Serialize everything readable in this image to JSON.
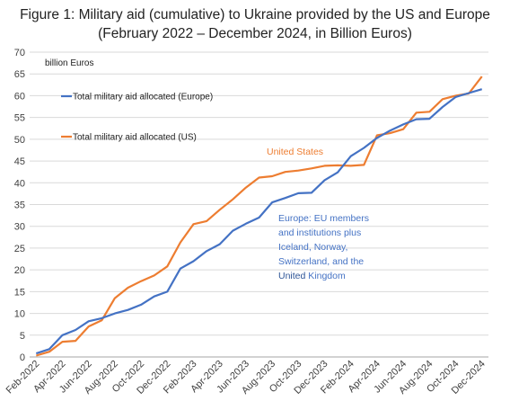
{
  "chart_data": {
    "type": "line",
    "title": "Figure 1: Military aid (cumulative) to Ukraine provided by the US and Europe",
    "subtitle": "(February 2022 – December 2024, in Billion Euros)",
    "ylabel": "billion Euros",
    "xlabel": "",
    "ylim": [
      0,
      70
    ],
    "y_ticks": [
      0,
      5,
      10,
      15,
      20,
      25,
      30,
      35,
      40,
      45,
      50,
      55,
      60,
      65,
      70
    ],
    "grid": "horizontal",
    "x_tick_labels": [
      "Feb-2022",
      "Apr-2022",
      "Jun-2022",
      "Aug-2022",
      "Oct-2022",
      "Dec-2022",
      "Feb-2023",
      "Apr-2023",
      "Jun-2023",
      "Aug-2023",
      "Oct-2023",
      "Dec-2023",
      "Feb-2024",
      "Apr-2024",
      "Jun-2024",
      "Aug-2024",
      "Oct-2024",
      "Dec-2024"
    ],
    "x": [
      "Feb-2022",
      "Mar-2022",
      "Apr-2022",
      "May-2022",
      "Jun-2022",
      "Jul-2022",
      "Aug-2022",
      "Sep-2022",
      "Oct-2022",
      "Nov-2022",
      "Dec-2022",
      "Jan-2023",
      "Feb-2023",
      "Mar-2023",
      "Apr-2023",
      "May-2023",
      "Jun-2023",
      "Jul-2023",
      "Aug-2023",
      "Sep-2023",
      "Oct-2023",
      "Nov-2023",
      "Dec-2023",
      "Jan-2024",
      "Feb-2024",
      "Mar-2024",
      "Apr-2024",
      "May-2024",
      "Jun-2024",
      "Jul-2024",
      "Aug-2024",
      "Sep-2024",
      "Oct-2024",
      "Nov-2024",
      "Dec-2024"
    ],
    "legend_position": "top-left",
    "series": [
      {
        "name": "Total military aid allocated (Europe)",
        "color": "#4472C4",
        "values": [
          0.8,
          1.8,
          5.0,
          6.2,
          8.2,
          8.9,
          10.0,
          10.8,
          12.0,
          13.9,
          15.0,
          20.3,
          22.0,
          24.3,
          25.9,
          29.0,
          30.6,
          32.0,
          35.5,
          36.5,
          37.6,
          37.7,
          40.6,
          42.4,
          46.1,
          48.0,
          50.3,
          52.0,
          53.4,
          54.6,
          54.7,
          57.4,
          59.7,
          60.6,
          61.5
        ]
      },
      {
        "name": "Total military aid allocated (US)",
        "color": "#ED7D31",
        "values": [
          0.3,
          1.2,
          3.5,
          3.7,
          7.0,
          8.4,
          13.5,
          15.9,
          17.4,
          18.7,
          20.8,
          26.3,
          30.5,
          31.2,
          33.8,
          36.2,
          38.9,
          41.2,
          41.5,
          42.5,
          42.8,
          43.3,
          43.9,
          44.0,
          43.9,
          44.1,
          50.9,
          51.4,
          52.3,
          56.1,
          56.3,
          59.2,
          60.0,
          60.5,
          64.4
        ]
      }
    ],
    "annotations": {
      "us_label": "United States",
      "europe_lines": [
        [
          {
            "text": "Europe: EU members",
            "em": false
          }
        ],
        [
          {
            "text": "and institutions plus",
            "em": false
          }
        ],
        [
          {
            "text": "Iceland, Norway,",
            "em": false
          }
        ],
        [
          {
            "text": "Switzerland, and the",
            "em": false
          }
        ],
        [
          {
            "text": "United",
            "em": true
          },
          {
            "text": " Kingdom",
            "em": false
          }
        ]
      ]
    }
  }
}
